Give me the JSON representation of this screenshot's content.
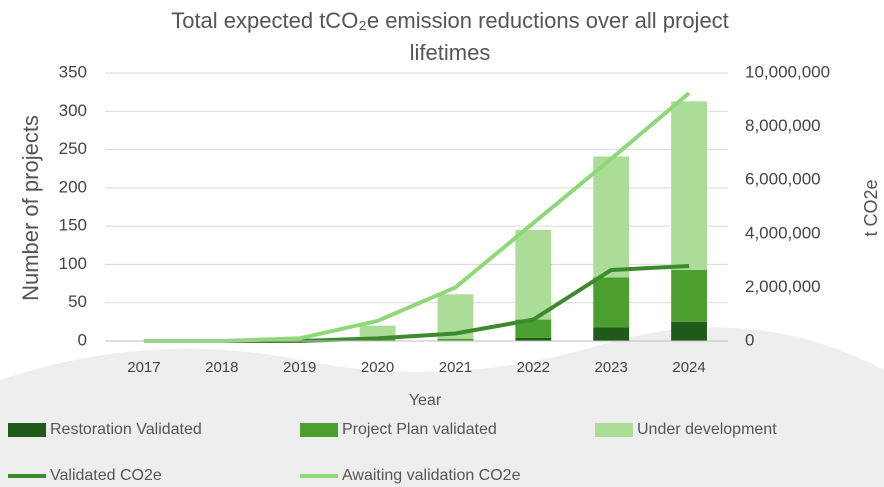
{
  "chart_data": {
    "type": "bar-line",
    "title": "Total expected tCO₂e emission reductions over all project lifetimes",
    "x_label": "Year",
    "y_label": "Number of projects",
    "y2_label": "t CO2e",
    "categories": [
      "2017",
      "2018",
      "2019",
      "2020",
      "2021",
      "2022",
      "2023",
      "2024"
    ],
    "ylim": [
      0,
      350
    ],
    "yticks": [
      0,
      50,
      100,
      150,
      200,
      250,
      300,
      350
    ],
    "y2lim": [
      0,
      10000000
    ],
    "y2ticks": [
      {
        "value": 0,
        "label": "0"
      },
      {
        "value": 2000000,
        "label": "2,000,000"
      },
      {
        "value": 4000000,
        "label": "4,000,000"
      },
      {
        "value": 6000000,
        "label": "6,000,000"
      },
      {
        "value": 8000000,
        "label": "8,000,000"
      },
      {
        "value": 10000000,
        "label": "10,000,000"
      }
    ],
    "grid": true,
    "series": [
      {
        "name": "Restoration Validated",
        "kind": "bar",
        "color": "#1f5a1a",
        "values": [
          0,
          0,
          0,
          0,
          0,
          4,
          18,
          25
        ]
      },
      {
        "name": "Project Plan validated",
        "kind": "bar",
        "color": "#4b9f2e",
        "values": [
          0,
          0,
          0,
          2,
          3,
          24,
          65,
          68
        ]
      },
      {
        "name": "Under development",
        "kind": "bar",
        "color": "#abdc98",
        "values": [
          0,
          0,
          3,
          18,
          58,
          117,
          158,
          220
        ]
      },
      {
        "name": "Validated CO2e",
        "kind": "line",
        "axis": "y2",
        "color": "#3c8a2c",
        "values": [
          0,
          0,
          0,
          100000,
          280000,
          800000,
          2650000,
          2800000
        ]
      },
      {
        "name": "Awaiting validation CO2e",
        "kind": "line",
        "axis": "y2",
        "color": "#8fd877",
        "values": [
          0,
          0,
          100000,
          750000,
          2000000,
          4400000,
          6800000,
          9250000
        ]
      }
    ]
  }
}
